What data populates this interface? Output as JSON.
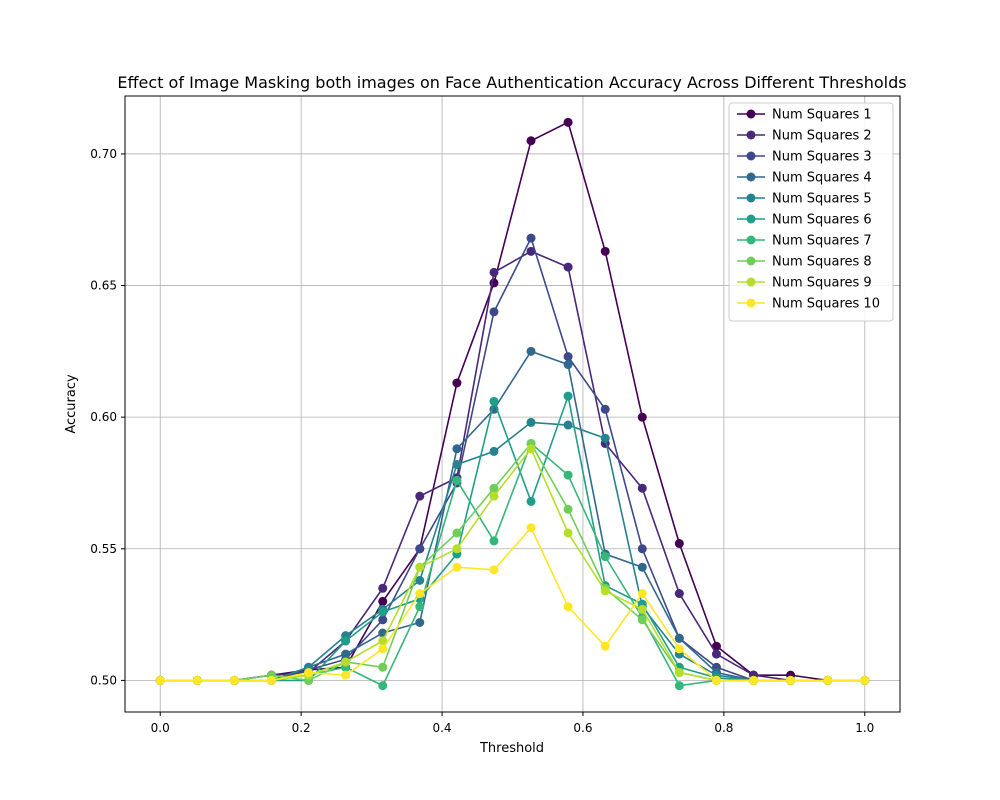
{
  "chart_data": {
    "type": "line",
    "title": "Effect of Image Masking both images on Face Authentication Accuracy Across Different Thresholds",
    "xlabel": "Threshold",
    "ylabel": "Accuracy",
    "xlim": [
      -0.05,
      1.05
    ],
    "ylim": [
      0.488,
      0.722
    ],
    "xticks": [
      0.0,
      0.2,
      0.4,
      0.6,
      0.8,
      1.0
    ],
    "xtick_labels": [
      "0.0",
      "0.2",
      "0.4",
      "0.6",
      "0.8",
      "1.0"
    ],
    "yticks": [
      0.5,
      0.55,
      0.6,
      0.65,
      0.7
    ],
    "ytick_labels": [
      "0.50",
      "0.55",
      "0.60",
      "0.65",
      "0.70"
    ],
    "grid": true,
    "legend_position": "top-right",
    "x": [
      0.0,
      0.0526,
      0.1053,
      0.1579,
      0.2105,
      0.2632,
      0.3158,
      0.3684,
      0.4211,
      0.4737,
      0.5263,
      0.5789,
      0.6316,
      0.6842,
      0.7368,
      0.7895,
      0.8421,
      0.8947,
      0.9474,
      1.0
    ],
    "series": [
      {
        "name": "Num Squares 1",
        "color": "#440154",
        "values": [
          0.5,
          0.5,
          0.5,
          0.502,
          0.504,
          0.505,
          0.53,
          0.55,
          0.613,
          0.651,
          0.705,
          0.712,
          0.663,
          0.6,
          0.552,
          0.513,
          0.502,
          0.502,
          0.5,
          0.5
        ]
      },
      {
        "name": "Num Squares 2",
        "color": "#482878",
        "values": [
          0.5,
          0.5,
          0.5,
          0.502,
          0.503,
          0.515,
          0.535,
          0.57,
          0.577,
          0.655,
          0.663,
          0.657,
          0.59,
          0.573,
          0.533,
          0.51,
          0.502,
          0.5,
          0.5,
          0.5
        ]
      },
      {
        "name": "Num Squares 3",
        "color": "#3e4989",
        "values": [
          0.5,
          0.5,
          0.5,
          0.5,
          0.504,
          0.508,
          0.523,
          0.55,
          0.575,
          0.64,
          0.668,
          0.623,
          0.603,
          0.55,
          0.516,
          0.505,
          0.5,
          0.5,
          0.5,
          0.5
        ]
      },
      {
        "name": "Num Squares 4",
        "color": "#31688e",
        "values": [
          0.5,
          0.5,
          0.5,
          0.5,
          0.505,
          0.51,
          0.518,
          0.522,
          0.588,
          0.603,
          0.625,
          0.62,
          0.548,
          0.543,
          0.516,
          0.503,
          0.5,
          0.5,
          0.5,
          0.5
        ]
      },
      {
        "name": "Num Squares 5",
        "color": "#26828e",
        "values": [
          0.5,
          0.5,
          0.5,
          0.5,
          0.505,
          0.517,
          0.527,
          0.538,
          0.582,
          0.587,
          0.598,
          0.597,
          0.592,
          0.528,
          0.51,
          0.502,
          0.5,
          0.5,
          0.5,
          0.5
        ]
      },
      {
        "name": "Num Squares 6",
        "color": "#1f9e89",
        "values": [
          0.5,
          0.5,
          0.5,
          0.5,
          0.5,
          0.515,
          0.526,
          0.531,
          0.548,
          0.606,
          0.568,
          0.608,
          0.536,
          0.529,
          0.505,
          0.501,
          0.5,
          0.5,
          0.5,
          0.5
        ]
      },
      {
        "name": "Num Squares 7",
        "color": "#35b779",
        "values": [
          0.5,
          0.5,
          0.5,
          0.5,
          0.502,
          0.505,
          0.498,
          0.528,
          0.576,
          0.553,
          0.59,
          0.578,
          0.547,
          0.524,
          0.498,
          0.5,
          0.5,
          0.5,
          0.5,
          0.5
        ]
      },
      {
        "name": "Num Squares 8",
        "color": "#6ece58",
        "values": [
          0.5,
          0.5,
          0.5,
          0.502,
          0.5,
          0.507,
          0.505,
          0.543,
          0.556,
          0.573,
          0.59,
          0.565,
          0.535,
          0.523,
          0.503,
          0.5,
          0.5,
          0.5,
          0.5,
          0.5
        ]
      },
      {
        "name": "Num Squares 9",
        "color": "#b5de2b",
        "values": [
          0.5,
          0.5,
          0.5,
          0.5,
          0.502,
          0.507,
          0.515,
          0.543,
          0.55,
          0.57,
          0.588,
          0.556,
          0.534,
          0.527,
          0.503,
          0.5,
          0.5,
          0.5,
          0.5,
          0.5
        ]
      },
      {
        "name": "Num Squares 10",
        "color": "#fde725",
        "values": [
          0.5,
          0.5,
          0.5,
          0.5,
          0.503,
          0.502,
          0.512,
          0.533,
          0.543,
          0.542,
          0.558,
          0.528,
          0.513,
          0.533,
          0.512,
          0.5,
          0.5,
          0.5,
          0.5,
          0.5
        ]
      }
    ]
  }
}
